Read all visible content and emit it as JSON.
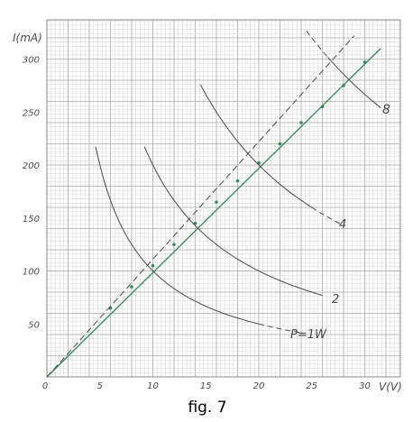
{
  "caption": "fig. 7",
  "chart_data": {
    "type": "scatter",
    "xlabel": "V(V)",
    "ylabel": "I(mA)",
    "xlim": [
      0,
      32
    ],
    "ylim": [
      0,
      320
    ],
    "x_ticks": [
      5,
      10,
      15,
      20,
      25,
      30
    ],
    "y_ticks": [
      50,
      100,
      150,
      200,
      250,
      300
    ],
    "zero_label": "0",
    "grid": true,
    "colors": {
      "grid": "#c9c9c9",
      "grid_major": "#a9a9a9",
      "measured": "#2e8b57",
      "curves": "#4a4a4a"
    },
    "series": [
      {
        "kind": "points",
        "points": [
          [
            6,
            65
          ],
          [
            8,
            85
          ],
          [
            10,
            105
          ],
          [
            12,
            125
          ],
          [
            14,
            145
          ],
          [
            16,
            165
          ],
          [
            18,
            185
          ],
          [
            20,
            202
          ],
          [
            22,
            220
          ],
          [
            24,
            240
          ],
          [
            26,
            255
          ],
          [
            28,
            275
          ],
          [
            30,
            297
          ]
        ]
      },
      {
        "kind": "fit_line",
        "from": [
          0,
          0
        ],
        "to": [
          31.5,
          310
        ]
      },
      {
        "kind": "dashed_line",
        "from": [
          0,
          0
        ],
        "to": [
          29,
          322
        ]
      },
      {
        "kind": "power_hyperbola",
        "name": "P=1W",
        "watts": 1,
        "solid_x": [
          4.6,
          20
        ],
        "dashed_x": [
          20,
          24
        ]
      },
      {
        "kind": "power_hyperbola",
        "name": "2",
        "watts": 2,
        "solid_x": [
          9.2,
          26
        ],
        "dashed_x": [],
        "dashed_start_x": [
          9.2,
          9.8
        ]
      },
      {
        "kind": "power_hyperbola",
        "name": "4",
        "watts": 4,
        "solid_x": [
          14.5,
          25
        ],
        "dashed_x": [
          25,
          28
        ]
      },
      {
        "kind": "power_hyperbola",
        "name": "8",
        "watts": 8,
        "solid_x": [
          26.5,
          31.5
        ],
        "dashed_x": [
          24.5,
          26.5
        ]
      }
    ]
  }
}
